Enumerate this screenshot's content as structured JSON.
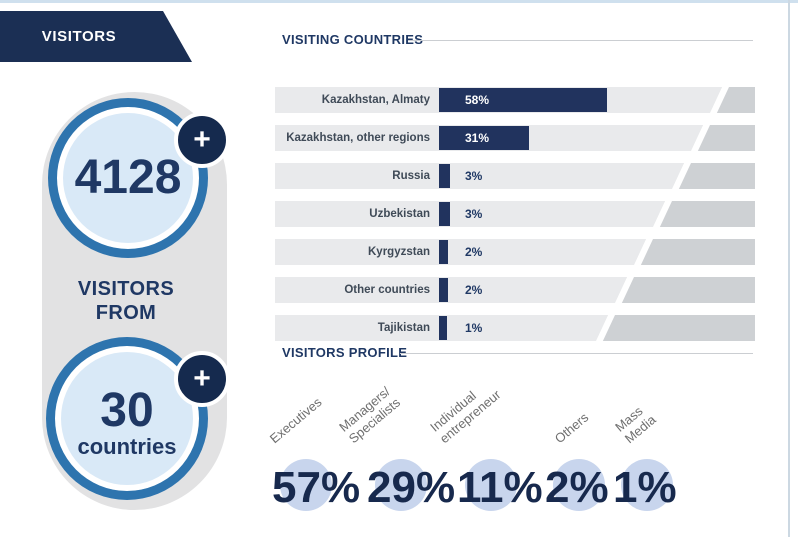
{
  "banner": {
    "title": "VISITORS"
  },
  "summary": {
    "visitors_count": "4128",
    "plus_badge": "+",
    "connector_text": "VISITORS\nFROM",
    "countries_count": "30",
    "countries_word": "countries"
  },
  "sections": {
    "visiting_countries_title": "VISITING COUNTRIES",
    "visitors_profile_title": "VISITORS PROFILE"
  },
  "chart_data": [
    {
      "type": "bar",
      "orientation": "horizontal",
      "title": "VISITING COUNTRIES",
      "categories": [
        "Kazakhstan, Almaty",
        "Kazakhstan, other regions",
        "Russia",
        "Uzbekistan",
        "Kyrgyzstan",
        "Other countries",
        "Tajikistan"
      ],
      "values": [
        58,
        31,
        3,
        3,
        2,
        2,
        1
      ],
      "labels": [
        "58%",
        "31%",
        "3%",
        "3%",
        "2%",
        "2%",
        "1%"
      ],
      "unit": "%",
      "xlim": [
        0,
        100
      ],
      "grid": false,
      "bar_color": "#21335e",
      "track_color": "#e9eaec"
    },
    {
      "type": "bar",
      "orientation": "vertical-percent-list",
      "title": "VISITORS PROFILE",
      "categories": [
        "Executives",
        "Managers/ Specialists",
        "Individual entrepreneur",
        "Others",
        "Mass Media"
      ],
      "display_labels": [
        "Executives",
        "Managers/\nSpecialists",
        "Individual\nentrepreneur",
        "Others",
        "Mass\nMedia"
      ],
      "values": [
        57,
        29,
        11,
        2,
        1
      ],
      "labels": [
        "57%",
        "29%",
        "11%",
        "2%",
        "1%"
      ],
      "unit": "%",
      "value_color": "#17294d",
      "highlight_circle_color": "#c8d5ed"
    }
  ],
  "colors": {
    "navy": "#1f3864",
    "banner_navy": "#1b2f54",
    "badge_navy": "#152a4e",
    "ring_blue": "#2e74ae",
    "light_blue_fill": "#d9e9f7",
    "capsule_gray": "#e2e2e3",
    "band_gray": "#e9eaec",
    "band_dark_gray": "#ced1d4",
    "percent_circle_blue": "#c8d5ed"
  }
}
